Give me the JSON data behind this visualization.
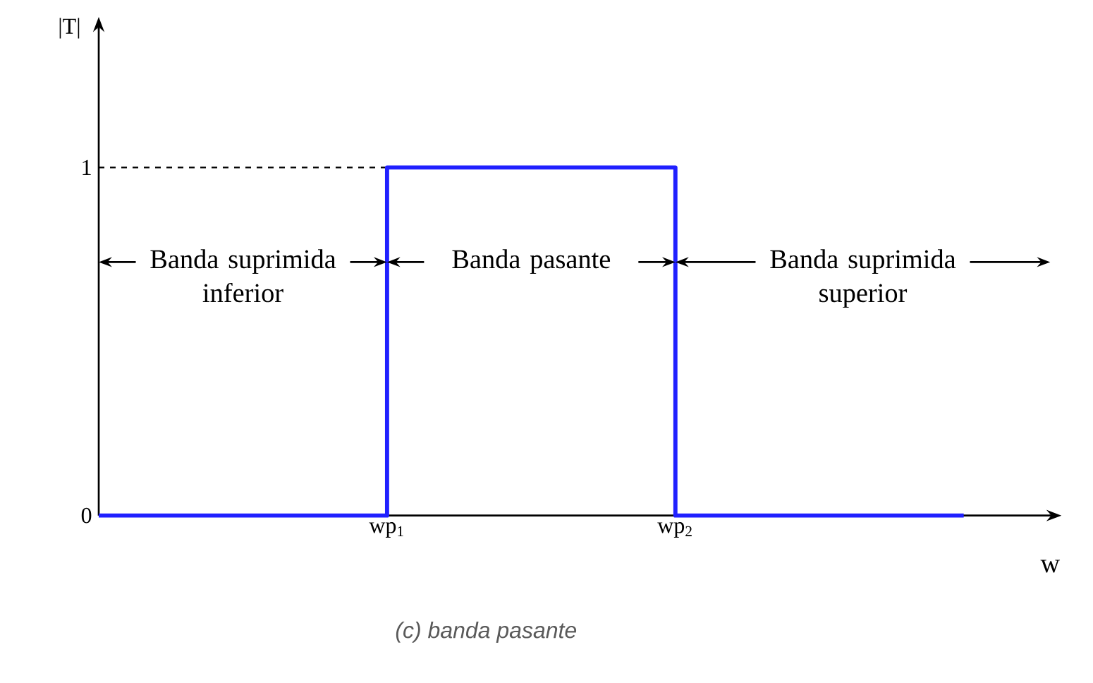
{
  "chart_data": {
    "type": "step",
    "xlabel": "w",
    "ylabel": "|T|",
    "categories": [
      null,
      "wp$_{1}$",
      "wp$_{2}$",
      null
    ],
    "series": [
      {
        "color": "#2020ff",
        "values": [
          0,
          1,
          0,
          0
        ]
      }
    ],
    "ylim": [
      0,
      1.4
    ],
    "yticks": [
      0,
      1
    ],
    "ref_lines": [
      {
        "axis": "y",
        "value": 1,
        "line_style": "dashed",
        "color": "#000000"
      }
    ],
    "annotations": [
      "Banda suprimida inferior",
      "Banda pasante",
      "Banda suprimida superior",
      "(c) banda pasante"
    ],
    "grid": false,
    "marker": "none",
    "line_style": "solid"
  }
}
